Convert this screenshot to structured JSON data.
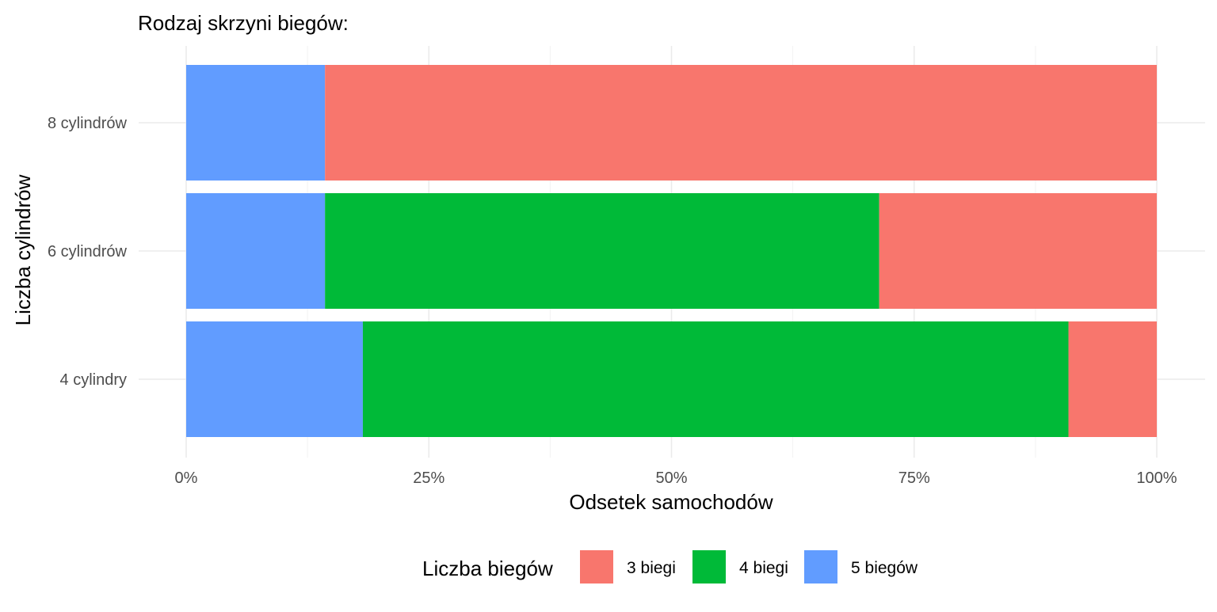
{
  "chart_data": {
    "type": "bar",
    "orientation": "horizontal",
    "stacked": "percent",
    "title": "Rodzaj skrzyni biegów:",
    "xlabel": "Odsetek samochodów",
    "ylabel": "Liczba cylindrów",
    "xlim": [
      0,
      1
    ],
    "x_ticks": [
      0,
      0.25,
      0.5,
      0.75,
      1
    ],
    "x_tick_labels": [
      "0%",
      "25%",
      "50%",
      "75%",
      "100%"
    ],
    "categories": [
      "4 cylindry",
      "6 cylindrów",
      "8 cylindrów"
    ],
    "series": [
      {
        "name": "5 biegów",
        "color": "#619CFF",
        "values": [
          0.182,
          0.143,
          0.143
        ]
      },
      {
        "name": "4 biegi",
        "color": "#00BA38",
        "values": [
          0.727,
          0.571,
          0.0
        ]
      },
      {
        "name": "3 biegi",
        "color": "#F8766D",
        "values": [
          0.091,
          0.286,
          0.857
        ]
      }
    ],
    "legend": {
      "title": "Liczba biegów",
      "position": "bottom",
      "entries": [
        "3 biegi",
        "4 biegi",
        "5 biegów"
      ]
    },
    "grid": true
  }
}
